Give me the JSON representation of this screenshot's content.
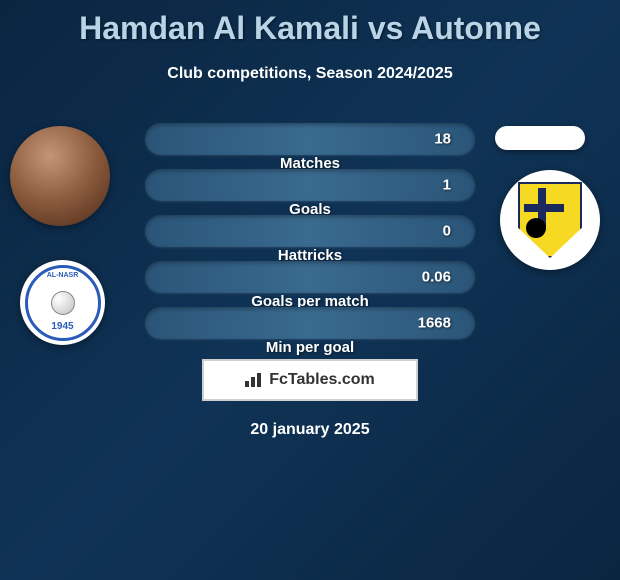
{
  "title": "Hamdan Al Kamali vs Autonne",
  "subtitle": "Club competitions, Season 2024/2025",
  "stats": [
    {
      "label": "Matches",
      "value": "18"
    },
    {
      "label": "Goals",
      "value": "1"
    },
    {
      "label": "Hattricks",
      "value": "0"
    },
    {
      "label": "Goals per match",
      "value": "0.06"
    },
    {
      "label": "Min per goal",
      "value": "1668"
    }
  ],
  "club_left": {
    "name": "AL-NASR",
    "year": "1945"
  },
  "footer_brand": "FcTables.com",
  "footer_date": "20 january 2025",
  "colors": {
    "title_color": "#b8d4e6",
    "text_white": "#ffffff",
    "bar_bg": "#2a5578",
    "shield_yellow": "#f5d922",
    "shield_blue": "#1a2a5c",
    "club_blue": "#2a5bb8"
  }
}
